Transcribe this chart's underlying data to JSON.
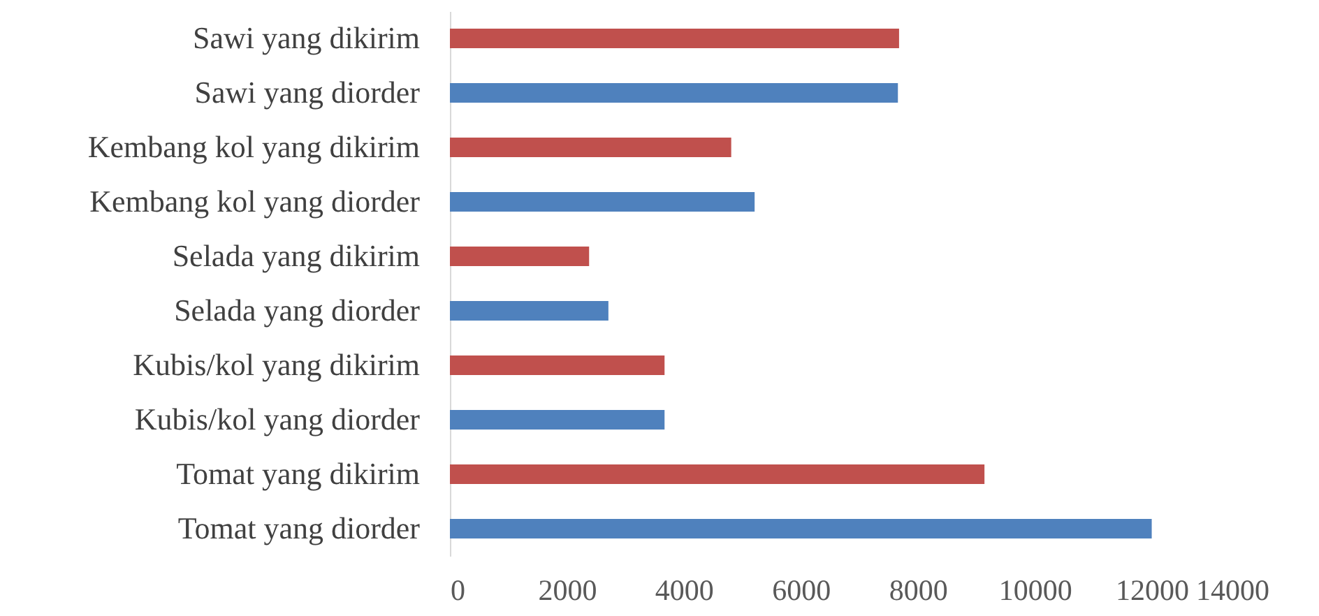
{
  "chart_data": {
    "type": "bar",
    "orientation": "horizontal",
    "categories": [
      "Sawi yang dikirim",
      "Sawi yang diorder",
      "Kembang kol yang dikirim",
      "Kembang kol yang diorder",
      "Selada yang dikirim",
      "Selada yang diorder",
      "Kubis/kol yang dikirim ",
      "Kubis/kol yang diorder",
      "Tomat yang dikirim",
      "Tomat yang diorder"
    ],
    "values": [
      7680,
      7660,
      4810,
      5210,
      2380,
      2710,
      3670,
      3670,
      9140,
      12000
    ],
    "colors": [
      "#c0504d",
      "#4f81bd",
      "#c0504d",
      "#4f81bd",
      "#c0504d",
      "#4f81bd",
      "#c0504d",
      "#4f81bd",
      "#c0504d",
      "#4f81bd"
    ],
    "xlim": [
      0,
      14000
    ],
    "xticks": [
      0,
      2000,
      4000,
      6000,
      8000,
      10000,
      12000,
      14000
    ],
    "grid": false
  }
}
